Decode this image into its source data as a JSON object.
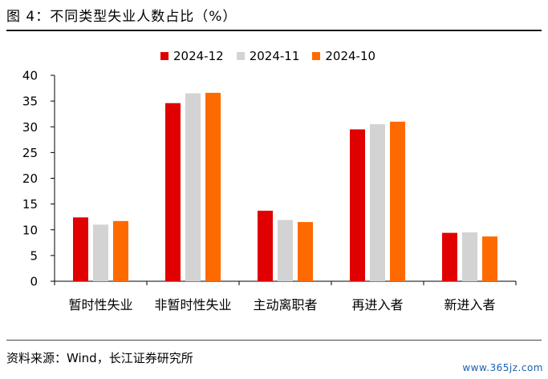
{
  "header": {
    "title": "图 4：不同类型失业人数占比（%）"
  },
  "footer": {
    "source": "资料来源：Wind，长江证券研究所"
  },
  "watermark": {
    "text": "www.365jz.com"
  },
  "chart_data": {
    "type": "bar",
    "categories": [
      "暂时性失业",
      "非暂时性失业",
      "主动离职者",
      "再进入者",
      "新进入者"
    ],
    "series": [
      {
        "name": "2024-12",
        "color": "#e00000",
        "values": [
          12.4,
          34.6,
          13.7,
          29.5,
          9.4
        ]
      },
      {
        "name": "2024-11",
        "color": "#d3d3d3",
        "values": [
          11.0,
          36.5,
          11.9,
          30.5,
          9.5
        ]
      },
      {
        "name": "2024-10",
        "color": "#ff6a00",
        "values": [
          11.7,
          36.6,
          11.5,
          31.0,
          8.7
        ]
      }
    ],
    "ylim": [
      0,
      40
    ],
    "yticks": [
      0,
      5,
      10,
      15,
      20,
      25,
      30,
      35,
      40
    ],
    "grid": false,
    "legend_position": "top-center"
  }
}
